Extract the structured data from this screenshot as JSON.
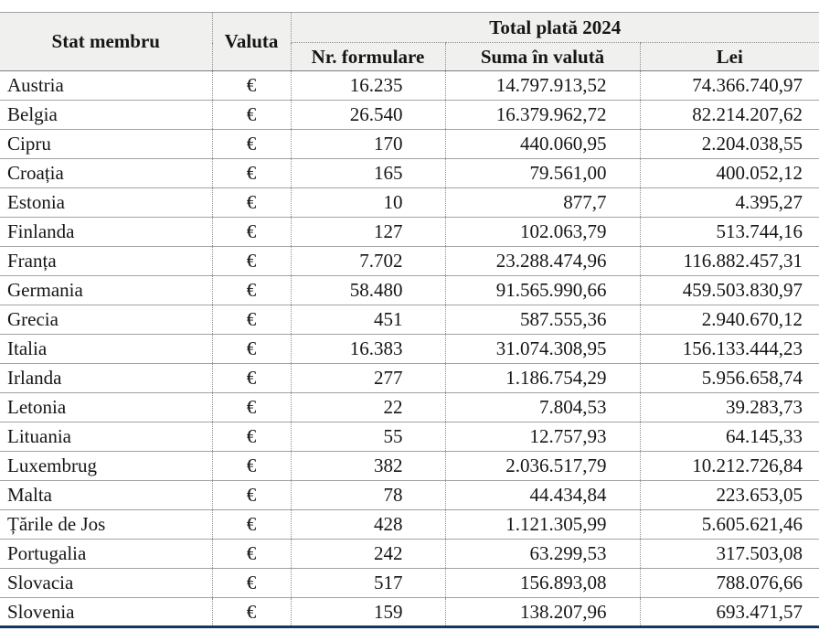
{
  "table": {
    "title_note": "Total plată 2024",
    "headers": {
      "stat_membru": "Stat membru",
      "valuta": "Valuta",
      "total_plata": "Total plată 2024",
      "nr_formulare": "Nr. formulare",
      "suma_in_valuta": "Suma în valută",
      "lei": "Lei"
    },
    "currency_symbol": "€",
    "colors": {
      "header_bg": "#f0f0ef",
      "grid": "#a3a3a3",
      "bottom_accent": "#17375d",
      "text": "#161616"
    },
    "rows": [
      {
        "stat": "Austria",
        "valuta": "€",
        "nr": "16.235",
        "suma": "14.797.913,52",
        "lei": "74.366.740,97"
      },
      {
        "stat": "Belgia",
        "valuta": "€",
        "nr": "26.540",
        "suma": "16.379.962,72",
        "lei": "82.214.207,62"
      },
      {
        "stat": "Cipru",
        "valuta": "€",
        "nr": "170",
        "suma": "440.060,95",
        "lei": "2.204.038,55"
      },
      {
        "stat": "Croația",
        "valuta": "€",
        "nr": "165",
        "suma": "79.561,00",
        "lei": "400.052,12"
      },
      {
        "stat": "Estonia",
        "valuta": "€",
        "nr": "10",
        "suma": "877,7",
        "lei": "4.395,27"
      },
      {
        "stat": "Finlanda",
        "valuta": "€",
        "nr": "127",
        "suma": "102.063,79",
        "lei": "513.744,16"
      },
      {
        "stat": "Franța",
        "valuta": "€",
        "nr": "7.702",
        "suma": "23.288.474,96",
        "lei": "116.882.457,31"
      },
      {
        "stat": "Germania",
        "valuta": "€",
        "nr": "58.480",
        "suma": "91.565.990,66",
        "lei": "459.503.830,97"
      },
      {
        "stat": "Grecia",
        "valuta": "€",
        "nr": "451",
        "suma": "587.555,36",
        "lei": "2.940.670,12"
      },
      {
        "stat": "Italia",
        "valuta": "€",
        "nr": "16.383",
        "suma": "31.074.308,95",
        "lei": "156.133.444,23"
      },
      {
        "stat": "Irlanda",
        "valuta": "€",
        "nr": "277",
        "suma": "1.186.754,29",
        "lei": "5.956.658,74"
      },
      {
        "stat": "Letonia",
        "valuta": "€",
        "nr": "22",
        "suma": "7.804,53",
        "lei": "39.283,73"
      },
      {
        "stat": "Lituania",
        "valuta": "€",
        "nr": "55",
        "suma": "12.757,93",
        "lei": "64.145,33"
      },
      {
        "stat": "Luxembrug",
        "valuta": "€",
        "nr": "382",
        "suma": "2.036.517,79",
        "lei": "10.212.726,84"
      },
      {
        "stat": "Malta",
        "valuta": "€",
        "nr": "78",
        "suma": "44.434,84",
        "lei": "223.653,05"
      },
      {
        "stat": "Țările de Jos",
        "valuta": "€",
        "nr": "428",
        "suma": "1.121.305,99",
        "lei": "5.605.621,46"
      },
      {
        "stat": "Portugalia",
        "valuta": "€",
        "nr": "242",
        "suma": "63.299,53",
        "lei": "317.503,08"
      },
      {
        "stat": "Slovacia",
        "valuta": "€",
        "nr": "517",
        "suma": "156.893,08",
        "lei": "788.076,66"
      },
      {
        "stat": "Slovenia",
        "valuta": "€",
        "nr": "159",
        "suma": "138.207,96",
        "lei": "693.471,57"
      }
    ]
  }
}
